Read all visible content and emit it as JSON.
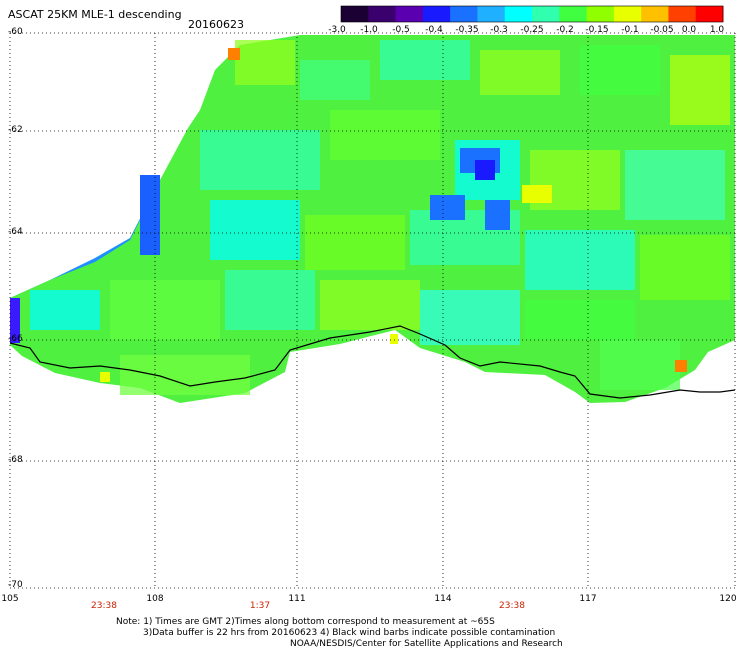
{
  "title": "ASCAT 25KM MLE-1 descending",
  "date": "20160623",
  "colorbar": {
    "labels": [
      "-3.0",
      "-1.0",
      "-0.5",
      "-0.4",
      "-0.35",
      "-0.3",
      "-0.25",
      "-0.2",
      "-0.15",
      "-0.1",
      "-0.05",
      "0.0",
      "1.0"
    ],
    "colors": [
      "#1a0033",
      "#3a006e",
      "#5a00b0",
      "#1a1aff",
      "#1a70ff",
      "#1fb0ff",
      "#00ffff",
      "#30ffb0",
      "#40ff40",
      "#90ff00",
      "#e8ff00",
      "#ffc000",
      "#ff4000",
      "#ff0000"
    ]
  },
  "axes": {
    "lat_labels": [
      "-60",
      "-62",
      "-64",
      "-66",
      "-68",
      "-70"
    ],
    "lon_labels": [
      "105",
      "108",
      "111",
      "114",
      "117",
      "120"
    ]
  },
  "times": [
    "23:38",
    "1:37",
    "23:38"
  ],
  "notes": {
    "line1": "Note: 1) Times are GMT 2)Times along bottom correspond to measurement at ~65S",
    "line2": "3)Data buffer is 22 hrs from 20160623 4) Black wind barbs indicate possible contamination",
    "line3": "NOAA/NESDIS/Center for Satellite Applications and Research"
  }
}
